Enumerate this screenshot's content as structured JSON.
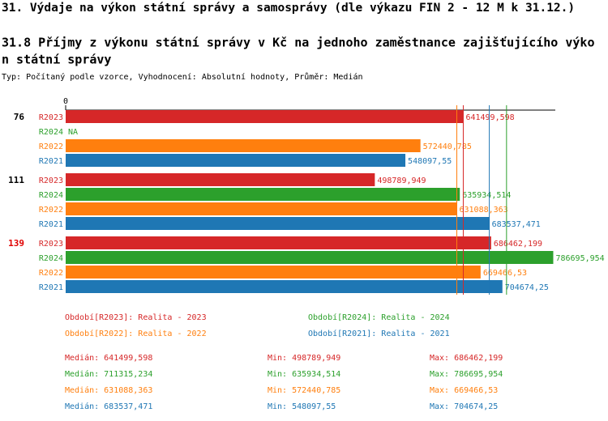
{
  "chart_data": {
    "type": "bar",
    "title": "31. Výdaje na výkon státní správy a samosprávy (dle výkazu FIN 2 - 12 M k 31.12.)",
    "subtitle_lines": [
      "31.8 Příjmy z výkonu státní správy v Kč na jednoho zaměstnance zajišťujícího výko",
      "n státní správy"
    ],
    "note": "Typ: Počítaný podle vzorce, Vyhodnocení: Absolutní hodnoty, Průměr: Medián",
    "categories": [
      "76",
      "111",
      "139"
    ],
    "category_colors": [
      "#000000",
      "#000000",
      "#e00000"
    ],
    "xlim": [
      0,
      790000
    ],
    "xticks": [
      0
    ],
    "stat_names": {
      "median": "Medián:",
      "min": "Min:",
      "max": "Max:"
    },
    "series": [
      {
        "name": "R2023",
        "legend": "Období[R2023]: Realita - 2023",
        "color": "#d62728",
        "values": [
          641499.598,
          498789.949,
          686462.199
        ],
        "value_labels": [
          "641499,598",
          "498789,949",
          "686462,199"
        ],
        "median": 641499.598,
        "median_label": "641499,598",
        "min": 498789.949,
        "min_label": "498789,949",
        "max": 686462.199,
        "max_label": "686462,199"
      },
      {
        "name": "R2024",
        "legend": "Období[R2024]: Realita - 2024",
        "color": "#2ca02c",
        "values": [
          null,
          635934.514,
          786695.954
        ],
        "value_labels": [
          "NA",
          "635934,514",
          "786695,954"
        ],
        "median": 711315.234,
        "median_label": "711315,234",
        "min": 635934.514,
        "min_label": "635934,514",
        "max": 786695.954,
        "max_label": "786695,954"
      },
      {
        "name": "R2022",
        "legend": "Období[R2022]: Realita - 2022",
        "color": "#ff7f0e",
        "values": [
          572440.785,
          631088.363,
          669466.53
        ],
        "value_labels": [
          "572440,785",
          "631088,363",
          "669466,53"
        ],
        "median": 631088.363,
        "median_label": "631088,363",
        "min": 572440.785,
        "min_label": "572440,785",
        "max": 669466.53,
        "max_label": "669466,53"
      },
      {
        "name": "R2021",
        "legend": "Období[R2021]: Realita - 2021",
        "color": "#1f77b4",
        "values": [
          548097.55,
          683537.471,
          704674.25
        ],
        "value_labels": [
          "548097,55",
          "683537,471",
          "704674,25"
        ],
        "median": 683537.471,
        "median_label": "683537,471",
        "min": 548097.55,
        "min_label": "548097,55",
        "max": 704674.25,
        "max_label": "704674,25"
      }
    ]
  }
}
